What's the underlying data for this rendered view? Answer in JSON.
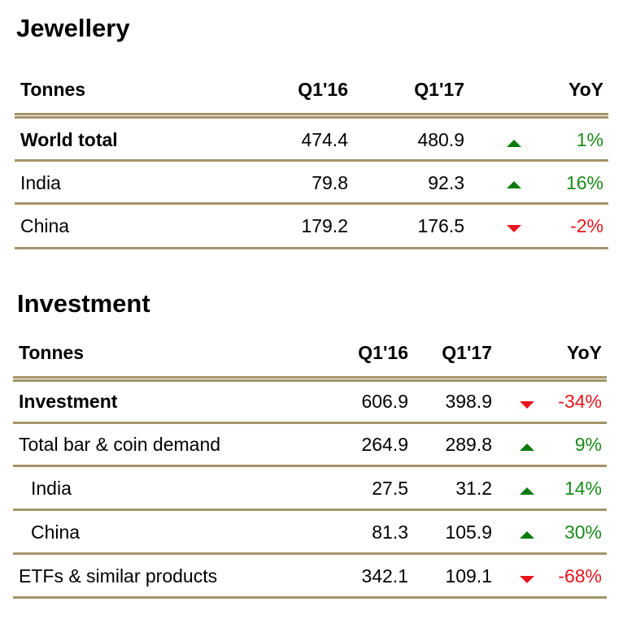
{
  "colors": {
    "rule": "#a39469",
    "positive": "#1a8a1a",
    "negative": "#e8141c"
  },
  "jewellery": {
    "title": "Jewellery",
    "headers": {
      "label": "Tonnes",
      "q116": "Q1'16",
      "q117": "Q1'17",
      "yoy": "YoY"
    },
    "rows": [
      {
        "label": "World total",
        "q116": "474.4",
        "q117": "480.9",
        "direction": "up",
        "yoy": "1%"
      },
      {
        "label": "India",
        "q116": "79.8",
        "q117": "92.3",
        "direction": "up",
        "yoy": "16%"
      },
      {
        "label": "China",
        "q116": "179.2",
        "q117": "176.5",
        "direction": "down",
        "yoy": "-2%"
      }
    ]
  },
  "investment": {
    "title": "Investment",
    "headers": {
      "label": "Tonnes",
      "q116": "Q1'16",
      "q117": "Q1'17",
      "yoy": "YoY"
    },
    "rows": [
      {
        "label": "Investment",
        "q116": "606.9",
        "q117": "398.9",
        "direction": "down",
        "yoy": "-34%"
      },
      {
        "label": "Total bar & coin demand",
        "q116": "264.9",
        "q117": "289.8",
        "direction": "up",
        "yoy": "9%"
      },
      {
        "label": "India",
        "q116": "27.5",
        "q117": "31.2",
        "direction": "up",
        "yoy": "14%"
      },
      {
        "label": "China",
        "q116": "81.3",
        "q117": "105.9",
        "direction": "up",
        "yoy": "30%"
      },
      {
        "label": "ETFs & similar products",
        "q116": "342.1",
        "q117": "109.1",
        "direction": "down",
        "yoy": "-68%"
      }
    ]
  }
}
